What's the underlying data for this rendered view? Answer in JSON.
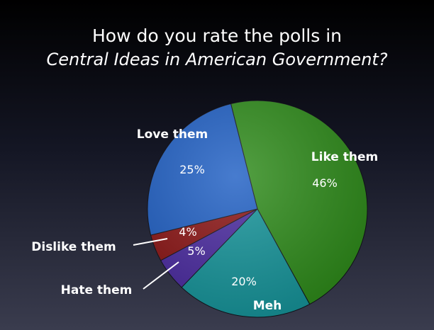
{
  "title": {
    "line1": "How do you rate the polls in",
    "line2": "Central Ideas in American Government?"
  },
  "chart_data": {
    "type": "pie",
    "title": "How do you rate the polls in Central Ideas in American Government?",
    "slices": [
      {
        "label": "Like them",
        "value": 46,
        "pct_label": "46%",
        "color": "#2e8b1a"
      },
      {
        "label": "Meh",
        "value": 20,
        "pct_label": "20%",
        "color": "#15949a"
      },
      {
        "label": "Hate them",
        "value": 5,
        "pct_label": "5%",
        "color": "#4a2aa0"
      },
      {
        "label": "Dislike them",
        "value": 4,
        "pct_label": "4%",
        "color": "#8b1414"
      },
      {
        "label": "Love them",
        "value": 25,
        "pct_label": "25%",
        "color": "#1f5fc4"
      }
    ],
    "legend": "none"
  }
}
